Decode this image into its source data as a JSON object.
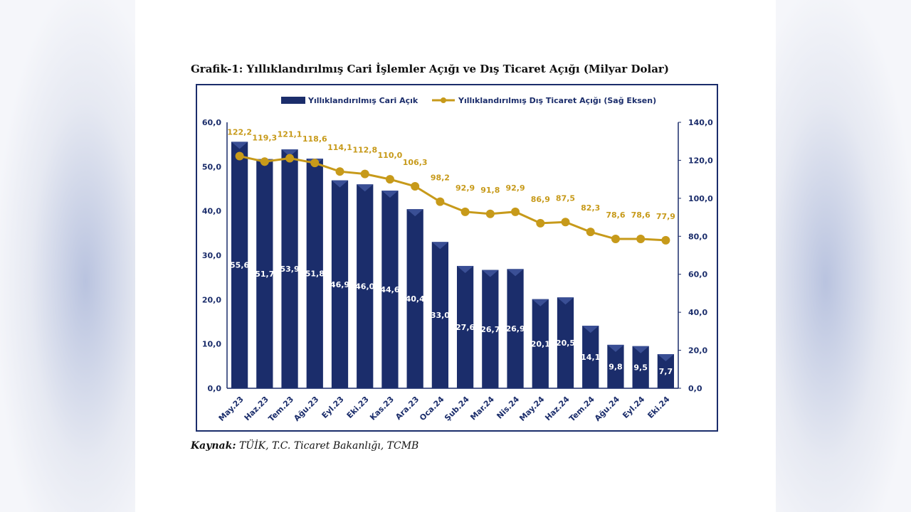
{
  "caption": "Grafik-1: Yıllıklandırılmış Cari İşlemler Açığı ve Dış Ticaret Açığı (Milyar Dolar)",
  "source": {
    "label": "Kaynak:",
    "text": " TÜİK, T.C. Ticaret Bakanlığı, TCMB"
  },
  "colors": {
    "bar": "#1b2d6b",
    "line": "#c79a1a",
    "axis": "#1b2d6b",
    "value_label_line": "#c79a1a"
  },
  "chart_data": {
    "type": "bar+line",
    "categories": [
      "May.23",
      "Haz.23",
      "Tem.23",
      "Ağu.23",
      "Eyl.23",
      "Eki.23",
      "Kas.23",
      "Ara.23",
      "Oca.24",
      "Şub.24",
      "Mar.24",
      "Nis.24",
      "May.24",
      "Haz.24",
      "Tem.24",
      "Ağu.24",
      "Eyl.24",
      "Eki.24"
    ],
    "series": [
      {
        "name": "Yıllıklandırılmış Cari Açık",
        "type": "bar",
        "axis": "left",
        "values": [
          55.6,
          51.7,
          53.9,
          51.8,
          46.9,
          46.0,
          44.6,
          40.4,
          33.0,
          27.6,
          26.7,
          26.9,
          20.1,
          20.5,
          14.1,
          9.8,
          9.5,
          7.7
        ],
        "labels": [
          "55,6",
          "51,7",
          "53,9",
          "51,8",
          "46,9",
          "46,0",
          "44,6",
          "40,4",
          "33,0",
          "27,6",
          "26,7",
          "26,9",
          "20,1",
          "20,5",
          "14,1",
          "9,8",
          "9,5",
          "7,7"
        ]
      },
      {
        "name": "Yıllıklandırılmış Dış Ticaret Açığı (Sağ Eksen)",
        "type": "line",
        "axis": "right",
        "values": [
          122.2,
          119.3,
          121.1,
          118.6,
          114.1,
          112.8,
          110.0,
          106.3,
          98.2,
          92.9,
          91.8,
          92.9,
          86.9,
          87.5,
          82.3,
          78.6,
          78.6,
          77.9
        ],
        "labels": [
          "122,2",
          "119,3",
          "121,1",
          "118,6",
          "114,1",
          "112,8",
          "110,0",
          "106,3",
          "98,2",
          "92,9",
          "91,8",
          "92,9",
          "86,9",
          "87,5",
          "82,3",
          "78,6",
          "78,6",
          "77,9"
        ]
      }
    ],
    "left_axis": {
      "min": 0,
      "max": 60,
      "ticks": [
        "0,0",
        "10,0",
        "20,0",
        "30,0",
        "40,0",
        "50,0",
        "60,0"
      ]
    },
    "right_axis": {
      "min": 0,
      "max": 140,
      "ticks": [
        "0,0",
        "20,0",
        "40,0",
        "60,0",
        "80,0",
        "100,0",
        "120,0",
        "140,0"
      ]
    },
    "legend_position": "top-center"
  }
}
